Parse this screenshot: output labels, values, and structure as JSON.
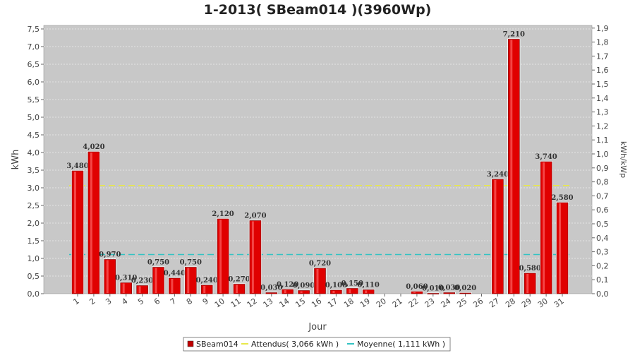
{
  "chart_data": {
    "type": "bar",
    "title": "1-2013( SBeam014 )(3960Wp)",
    "xlabel": "Jour",
    "ylabel": "kWh",
    "ylabel_right": "kWh/kWp",
    "ylim": [
      0,
      7.6
    ],
    "ylim_right": [
      0,
      1.9192
    ],
    "yticks": [
      "0,0",
      "0,5",
      "1,0",
      "1,5",
      "2,0",
      "2,5",
      "3,0",
      "3,5",
      "4,0",
      "4,5",
      "5,0",
      "5,5",
      "6,0",
      "6,5",
      "7,0",
      "7,5"
    ],
    "yticks_right": [
      "0,0",
      "0,1",
      "0,2",
      "0,3",
      "0,4",
      "0,5",
      "0,6",
      "0,7",
      "0,8",
      "0,9",
      "1,0",
      "1,1",
      "1,2",
      "1,3",
      "1,4",
      "1,5",
      "1,6",
      "1,7",
      "1,8",
      "1,9"
    ],
    "categories": [
      "1",
      "2",
      "3",
      "4",
      "5",
      "6",
      "7",
      "8",
      "9",
      "10",
      "11",
      "12",
      "13",
      "14",
      "15",
      "16",
      "17",
      "18",
      "19",
      "20",
      "21",
      "22",
      "23",
      "24",
      "25",
      "26",
      "27",
      "28",
      "29",
      "30",
      "31"
    ],
    "series": [
      {
        "name": "SBeam014",
        "values": [
          3.48,
          4.02,
          0.97,
          0.31,
          0.23,
          0.75,
          0.44,
          0.75,
          0.24,
          2.12,
          0.27,
          2.07,
          0.03,
          0.12,
          0.09,
          0.72,
          0.1,
          0.15,
          0.11,
          0,
          0,
          0.06,
          0.01,
          0.03,
          0.02,
          0,
          3.24,
          7.21,
          0.58,
          3.74,
          2.58
        ],
        "labels": [
          "3,480",
          "4,020",
          "0,970",
          "0,310",
          "0,230",
          "0,750",
          "0,440",
          "0,750",
          "0,240",
          "2,120",
          "0,270",
          "2,070",
          "0,030",
          "0,120",
          "0,090",
          "0,720",
          "0,100",
          "0,150",
          "0,110",
          "",
          "",
          "0,060",
          "0,010",
          "0,030",
          "0,020",
          "",
          "3,240",
          "7,210",
          "0,580",
          "3,740",
          "2,580"
        ],
        "color": "#e00000"
      }
    ],
    "reference_lines": [
      {
        "name": "Attendus( 3,066 kWh )",
        "value": 3.066,
        "color": "#e8e84a",
        "style": "dashed"
      },
      {
        "name": "Moyenne( 1,111 kWh )",
        "value": 1.111,
        "color": "#33c3c3",
        "style": "dashed"
      }
    ],
    "grid": true,
    "plot_background": "#c8c8c8",
    "legend_position": "bottom"
  }
}
